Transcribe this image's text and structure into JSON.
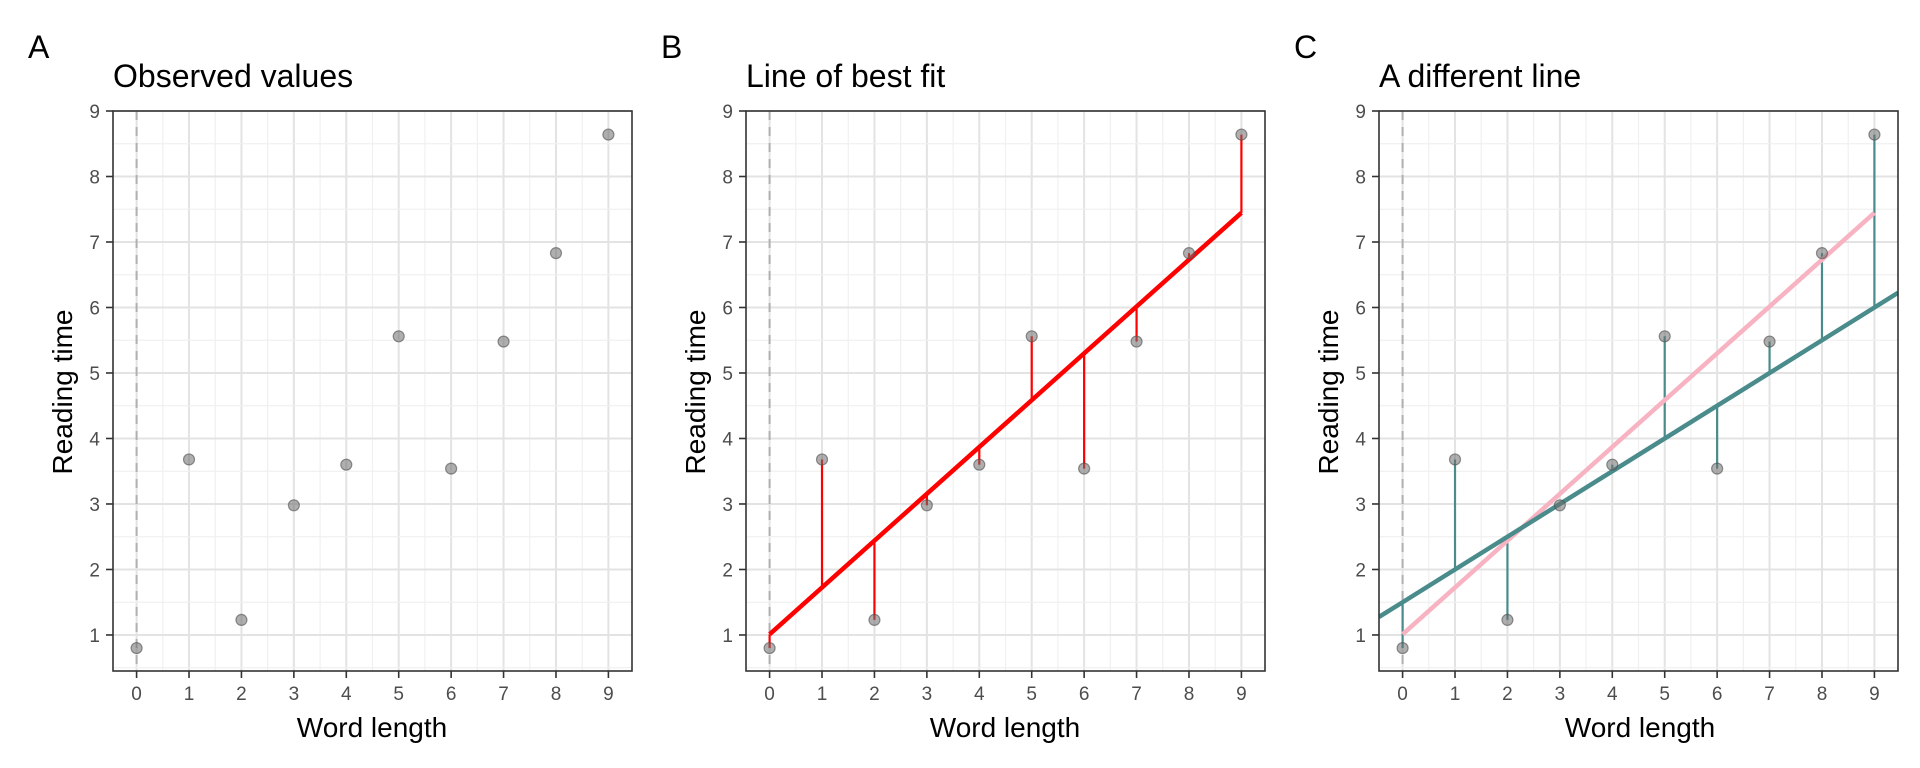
{
  "chart_data": [
    {
      "type": "scatter",
      "panel_label": "A",
      "title": "Observed values",
      "xlabel": "Word length",
      "ylabel": "Reading time",
      "xlim": [
        -0.45,
        9.45
      ],
      "ylim": [
        0.45,
        9.0
      ],
      "x_ticks": [
        0,
        1,
        2,
        3,
        4,
        5,
        6,
        7,
        8,
        9
      ],
      "y_ticks": [
        1,
        2,
        3,
        4,
        5,
        6,
        7,
        8,
        9
      ],
      "grid": true,
      "vline_x": 0,
      "points": {
        "x": [
          0,
          1,
          2,
          3,
          4,
          5,
          6,
          7,
          8,
          9
        ],
        "y": [
          0.8,
          3.68,
          1.23,
          2.98,
          3.6,
          5.56,
          3.54,
          5.48,
          6.83,
          8.64
        ]
      },
      "lines": [],
      "residuals": null
    },
    {
      "type": "scatter",
      "panel_label": "B",
      "title": "Line of best fit",
      "xlabel": "Word length",
      "ylabel": "Reading time",
      "xlim": [
        -0.45,
        9.45
      ],
      "ylim": [
        0.45,
        9.0
      ],
      "x_ticks": [
        0,
        1,
        2,
        3,
        4,
        5,
        6,
        7,
        8,
        9
      ],
      "y_ticks": [
        1,
        2,
        3,
        4,
        5,
        6,
        7,
        8,
        9
      ],
      "grid": true,
      "vline_x": 0,
      "points": {
        "x": [
          0,
          1,
          2,
          3,
          4,
          5,
          6,
          7,
          8,
          9
        ],
        "y": [
          0.8,
          3.68,
          1.23,
          2.98,
          3.6,
          5.56,
          3.54,
          5.48,
          6.83,
          8.64
        ]
      },
      "lines": [
        {
          "intercept": 1.01,
          "slope": 0.715,
          "x_range": [
            0,
            9
          ],
          "color": "#ff0000"
        }
      ],
      "residuals": {
        "line_index": 0,
        "color": "#ff0000"
      }
    },
    {
      "type": "scatter",
      "panel_label": "C",
      "title": "A different line",
      "xlabel": "Word length",
      "ylabel": "Reading time",
      "xlim": [
        -0.45,
        9.45
      ],
      "ylim": [
        0.45,
        9.0
      ],
      "x_ticks": [
        0,
        1,
        2,
        3,
        4,
        5,
        6,
        7,
        8,
        9
      ],
      "y_ticks": [
        1,
        2,
        3,
        4,
        5,
        6,
        7,
        8,
        9
      ],
      "grid": true,
      "vline_x": 0,
      "points": {
        "x": [
          0,
          1,
          2,
          3,
          4,
          5,
          6,
          7,
          8,
          9
        ],
        "y": [
          0.8,
          3.68,
          1.23,
          2.98,
          3.6,
          5.56,
          3.54,
          5.48,
          6.83,
          8.64
        ]
      },
      "lines": [
        {
          "intercept": 1.01,
          "slope": 0.715,
          "x_range": [
            0,
            9
          ],
          "color": "#f8b3c2"
        },
        {
          "intercept": 1.5,
          "slope": 0.5,
          "x_range": [
            -0.45,
            9.45
          ],
          "color": "#4a8b8b"
        }
      ],
      "residuals": {
        "line_index": 1,
        "color": "#4a8b8b"
      }
    }
  ]
}
